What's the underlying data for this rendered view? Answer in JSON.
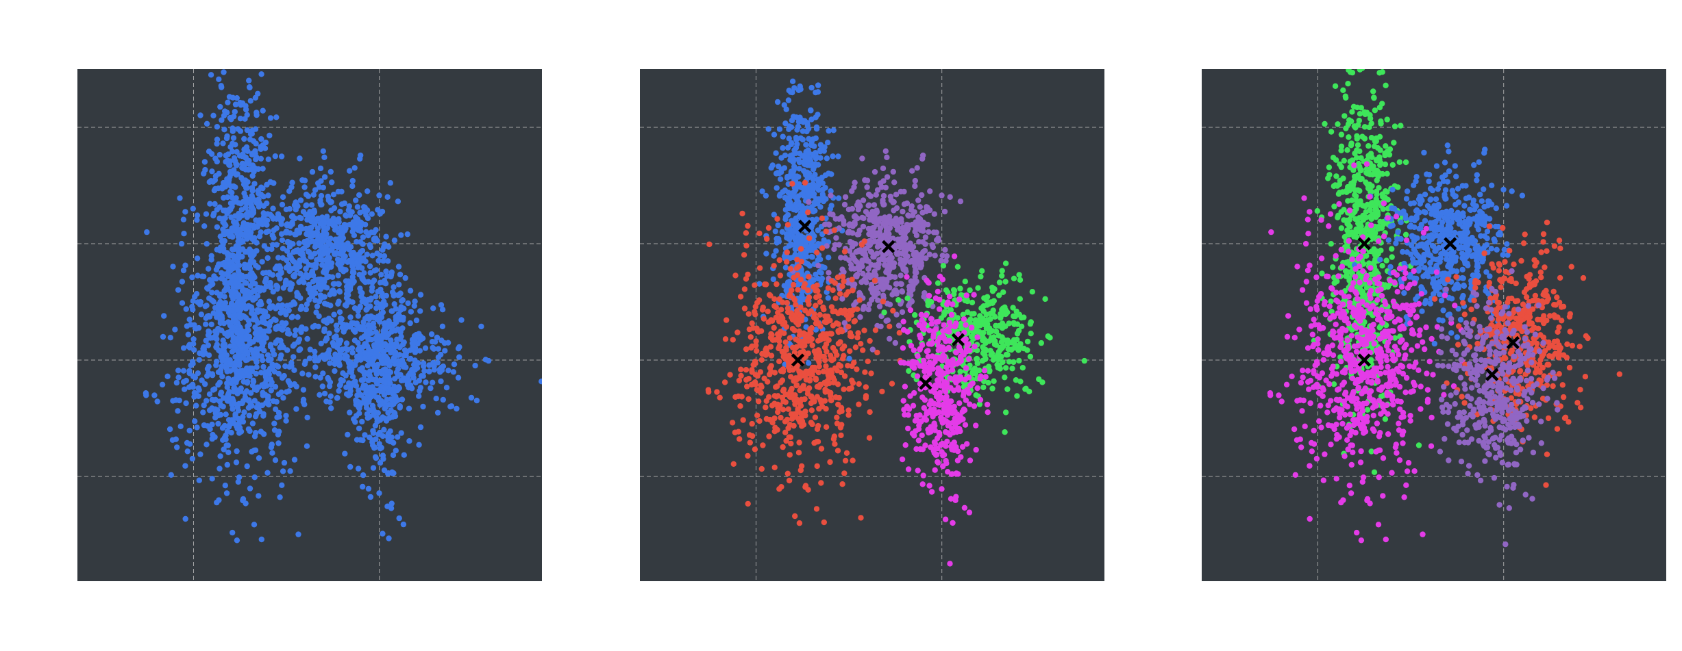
{
  "figure": {
    "background": "#ffffff",
    "panel_background": "#343a40",
    "grid_color": "#bfbfbf",
    "grid": true,
    "grid_style": "dashed",
    "tick_labels_visible": false,
    "axis_labels_visible": false
  },
  "colors": {
    "blue": "#3d78e8",
    "purple": "#9166c4",
    "red": "#ea4f3f",
    "green": "#3ee65a",
    "magenta": "#e43be8",
    "centroid": "#000000"
  },
  "chart_data": [
    {
      "type": "scatter",
      "title": "",
      "xlabel": "",
      "ylabel": "",
      "xlim": [
        -3.5,
        6.5
      ],
      "ylim": [
        -3.8,
        5.0
      ],
      "xticks": [
        -1,
        3
      ],
      "yticks": [
        -2,
        0,
        2,
        4
      ],
      "grid": true,
      "clusters": [
        {
          "color": "blue",
          "center": [
            0,
            2
          ],
          "spread": [
            0.35,
            1.5
          ],
          "count": 650
        },
        {
          "color": "blue",
          "center": [
            1.8,
            1.9
          ],
          "spread": [
            0.55,
            0.6
          ],
          "count": 560
        },
        {
          "color": "blue",
          "center": [
            0,
            0
          ],
          "spread": [
            0.75,
            1.05
          ],
          "count": 650
        },
        {
          "color": "blue",
          "center": [
            3,
            0
          ],
          "spread": [
            1.0,
            0.4
          ],
          "count": 400
        },
        {
          "color": "blue",
          "center": [
            3,
            0
          ],
          "spread": [
            0.35,
            1.2
          ],
          "count": 400
        }
      ],
      "centroids": []
    },
    {
      "type": "scatter",
      "title": "",
      "xlabel": "",
      "ylabel": "",
      "xlim": [
        -3.5,
        6.5
      ],
      "ylim": [
        -3.8,
        5.0
      ],
      "xticks": [
        -1,
        3
      ],
      "yticks": [
        -2,
        0,
        2,
        4
      ],
      "grid": true,
      "clusters": [
        {
          "color": "blue",
          "center": [
            0,
            2.5
          ],
          "spread": [
            0.3,
            1.0
          ],
          "count": 550
        },
        {
          "color": "purple",
          "center": [
            1.8,
            1.9
          ],
          "spread": [
            0.55,
            0.6
          ],
          "count": 560
        },
        {
          "color": "red",
          "center": [
            0,
            0
          ],
          "spread": [
            0.75,
            0.95
          ],
          "count": 650
        },
        {
          "color": "green",
          "center": [
            3.8,
            0.4
          ],
          "spread": [
            0.65,
            0.45
          ],
          "count": 400
        },
        {
          "color": "magenta",
          "center": [
            3,
            -0.5
          ],
          "spread": [
            0.4,
            0.9
          ],
          "count": 400
        }
      ],
      "centroids": [
        [
          0.05,
          2.3
        ],
        [
          1.85,
          1.95
        ],
        [
          -0.1,
          0.0
        ],
        [
          3.35,
          0.35
        ],
        [
          2.65,
          -0.4
        ]
      ]
    },
    {
      "type": "scatter",
      "title": "",
      "xlabel": "",
      "ylabel": "",
      "xlim": [
        -3.5,
        6.5
      ],
      "ylim": [
        -3.8,
        5.0
      ],
      "xticks": [
        -1,
        3
      ],
      "yticks": [
        -2,
        0,
        2,
        4
      ],
      "grid": true,
      "clusters": [
        {
          "color": "green",
          "center": [
            0,
            2
          ],
          "spread": [
            0.35,
            1.4
          ],
          "count": 650
        },
        {
          "color": "blue",
          "center": [
            1.8,
            2.0
          ],
          "spread": [
            0.55,
            0.6
          ],
          "count": 560
        },
        {
          "color": "magenta",
          "center": [
            0,
            0
          ],
          "spread": [
            0.75,
            1.05
          ],
          "count": 650
        },
        {
          "color": "red",
          "center": [
            3.4,
            0.4
          ],
          "spread": [
            0.6,
            0.7
          ],
          "count": 420
        },
        {
          "color": "purple",
          "center": [
            2.8,
            -0.5
          ],
          "spread": [
            0.55,
            0.8
          ],
          "count": 400
        }
      ],
      "centroids": [
        [
          0.0,
          2.0
        ],
        [
          1.85,
          2.0
        ],
        [
          0.0,
          0.0
        ],
        [
          3.2,
          0.3
        ],
        [
          2.75,
          -0.25
        ]
      ]
    }
  ]
}
